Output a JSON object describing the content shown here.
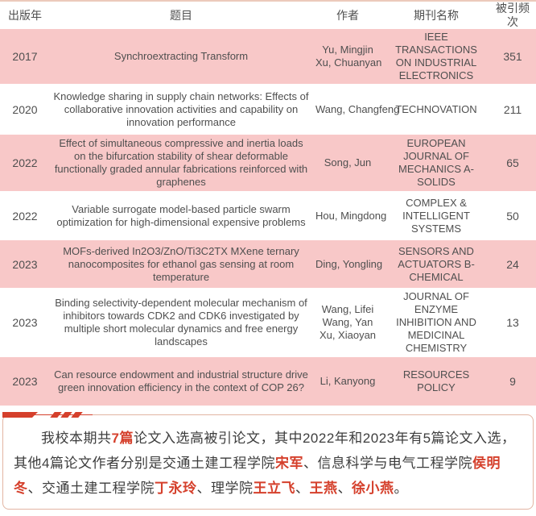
{
  "colors": {
    "accent_red": "#d5402c",
    "row_pink": "#f8c8c8",
    "box_border": "#e2b5a3",
    "table_text": "#4f4f4f",
    "paragraph_text": "#3d3d3d"
  },
  "table": {
    "headers": [
      "出版年",
      "题目",
      "作者",
      "期刊名称",
      "被引频次"
    ],
    "rows": [
      {
        "year": "2017",
        "title": "Synchroextracting Transform",
        "authors": [
          "Yu, Mingjin",
          "Xu, Chuanyan"
        ],
        "journal": "IEEE TRANSACTIONS ON INDUSTRIAL ELECTRONICS",
        "cited": "351"
      },
      {
        "year": "2020",
        "title": "Knowledge sharing in supply chain networks: Effects of collaborative innovation activities and capability on innovation performance",
        "authors": [
          "Wang, Changfeng"
        ],
        "journal": "TECHNOVATION",
        "cited": "211"
      },
      {
        "year": "2022",
        "title": "Effect of simultaneous compressive and inertia loads on the bifurcation stability of shear deformable functionally graded annular fabrications reinforced with graphenes",
        "authors": [
          "Song, Jun"
        ],
        "journal": "EUROPEAN JOURNAL OF MECHANICS A-SOLIDS",
        "cited": "65"
      },
      {
        "year": "2022",
        "title": "Variable surrogate model-based particle swarm optimization for high-dimensional expensive problems",
        "authors": [
          "Hou, Mingdong"
        ],
        "journal": "COMPLEX & INTELLIGENT SYSTEMS",
        "cited": "50"
      },
      {
        "year": "2023",
        "title": "MOFs-derived In2O3/ZnO/Ti3C2TX MXene ternary nanocomposites for ethanol gas sensing at room temperature",
        "authors": [
          "Ding, Yongling"
        ],
        "journal": "SENSORS AND ACTUATORS B-CHEMICAL",
        "cited": "24"
      },
      {
        "year": "2023",
        "title": "Binding selectivity-dependent molecular mechanism of inhibitors towards CDK2 and CDK6 investigated by multiple short molecular dynamics and free energy landscapes",
        "authors": [
          "Wang, Lifei",
          "Wang, Yan",
          "Xu, Xiaoyan"
        ],
        "journal": "JOURNAL OF ENZYME INHIBITION AND MEDICINAL CHEMISTRY",
        "cited": "13"
      },
      {
        "year": "2023",
        "title": "Can resource endowment and industrial structure drive green innovation efficiency in the context of COP 26?",
        "authors": [
          "Li, Kanyong"
        ],
        "journal": "RESOURCES POLICY",
        "cited": "9"
      }
    ]
  },
  "summary": {
    "segments": [
      {
        "text": "我校本期共",
        "bold": false
      },
      {
        "text": "7篇",
        "bold": true
      },
      {
        "text": "论文入选高被引论文，其中2022年和2023年有5篇论文入选，其他4篇论文作者分别是交通土建工程学院",
        "bold": false
      },
      {
        "text": "宋军",
        "bold": true
      },
      {
        "text": "、信息科学与电气工程学院",
        "bold": false
      },
      {
        "text": "侯明冬",
        "bold": true
      },
      {
        "text": "、交通土建工程学院",
        "bold": false
      },
      {
        "text": "丁永玲",
        "bold": true
      },
      {
        "text": "、理学院",
        "bold": false
      },
      {
        "text": "王立飞",
        "bold": true
      },
      {
        "text": "、",
        "bold": false
      },
      {
        "text": "王燕",
        "bold": true
      },
      {
        "text": "、",
        "bold": false
      },
      {
        "text": "徐小燕",
        "bold": true
      },
      {
        "text": "。",
        "bold": false
      }
    ]
  }
}
